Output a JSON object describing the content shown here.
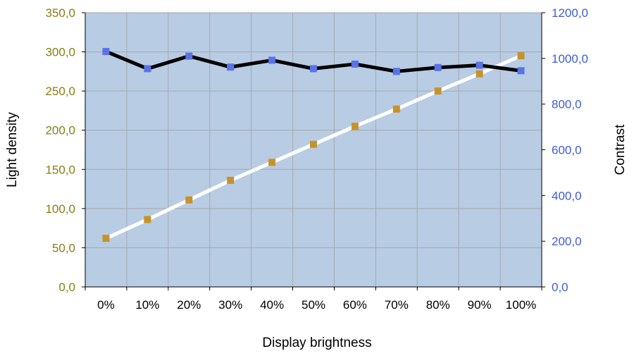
{
  "chart_data": {
    "type": "line",
    "xlabel": "Display brightness",
    "ylabel_left": "Light density",
    "ylabel_right": "Contrast",
    "categories": [
      "0%",
      "10%",
      "20%",
      "30%",
      "40%",
      "50%",
      "60%",
      "70%",
      "80%",
      "90%",
      "100%"
    ],
    "y_left_lim": [
      0,
      350
    ],
    "y_left_ticks": [
      "0,0",
      "50,0",
      "100,0",
      "150,0",
      "200,0",
      "250,0",
      "300,0",
      "350,0"
    ],
    "y_right_lim": [
      0,
      1200
    ],
    "y_right_ticks": [
      "0,0",
      "200,0",
      "400,0",
      "600,0",
      "800,0",
      "1000,0",
      "1200,0"
    ],
    "grid": true,
    "series": [
      {
        "axis": "left",
        "values": [
          62,
          86,
          111,
          136,
          159,
          182,
          205,
          227,
          250,
          272,
          295
        ],
        "line_color": "#ffffff",
        "marker_color": "#c8922a"
      },
      {
        "axis": "right",
        "values": [
          1030,
          955,
          1010,
          962,
          992,
          955,
          975,
          943,
          960,
          970,
          946
        ],
        "line_color": "#000000",
        "marker_color": "#5a73e6"
      }
    ],
    "colors": {
      "plot_bg": "#b8cce4",
      "grid": "#a8a8a8",
      "left_tick": "#8a7d10",
      "right_tick": "#3f5bd6"
    }
  }
}
